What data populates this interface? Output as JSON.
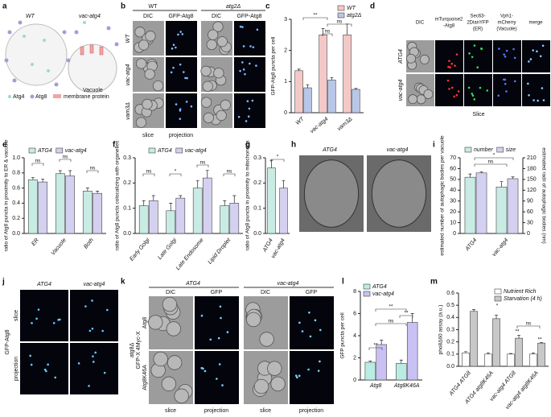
{
  "panel_letters": [
    "a",
    "b",
    "c",
    "d",
    "e",
    "f",
    "g",
    "h",
    "i",
    "j",
    "k",
    "l",
    "m"
  ],
  "panel_a": {
    "wt": "WT",
    "mutant": "vac-atg4",
    "vacuole": "Vacuole",
    "legend": [
      "Atg4",
      "Atg8",
      "membrane protein"
    ]
  },
  "panel_b": {
    "groups": [
      "WT",
      "atg2Δ"
    ],
    "columns": [
      "DIC",
      "GFP-Atg8",
      "DIC",
      "GFP-Atg8"
    ],
    "rows": [
      "WT",
      "vac-atg4",
      "vam3Δ"
    ],
    "footer": [
      "slice",
      "projection"
    ]
  },
  "panel_d": {
    "columns": [
      [
        "DIC"
      ],
      [
        "mTurquoise2",
        "-Atg8"
      ],
      [
        "Sec63-",
        "2DianYFP",
        "(ER)"
      ],
      [
        "Vph1-",
        "mCherry",
        "(Vacuole)"
      ],
      [
        "merge"
      ]
    ],
    "rows": [
      "ATG4",
      "vac-atg4"
    ],
    "footer": "Slice"
  },
  "panel_h": {
    "labels": [
      "ATG4",
      "vac-atg4"
    ]
  },
  "panel_j": {
    "columns": [
      "ATG4",
      "vac-atg4"
    ],
    "rows": [
      "slice",
      "projection"
    ],
    "side": "GFP-Atg8"
  },
  "panel_k": {
    "groups": [
      "ATG4",
      "vac-atg4"
    ],
    "columns": [
      "DIC",
      "GFP",
      "DIC",
      "GFP"
    ],
    "side": [
      "atg8Δ",
      "GFP-X 4Myc-X"
    ],
    "rows": [
      "Atg8",
      "Atg8K46A"
    ],
    "footer": [
      "slice",
      "projection",
      "slice",
      "projection"
    ]
  },
  "chart_data": [
    {
      "type": "bar",
      "ylabel": "GFP-Atg8 puncta per cell",
      "categories": [
        "WT",
        "vac-atg4",
        "vam3Δ"
      ],
      "series": [
        {
          "name": "WT",
          "color": "#f3c9c7",
          "values": [
            1.35,
            2.5,
            2.5
          ],
          "errors": [
            0.05,
            0.2,
            0.35
          ]
        },
        {
          "name": "atg2Δ",
          "color": "#b8c6e8",
          "values": [
            0.8,
            1.05,
            0.75
          ],
          "errors": [
            0.1,
            0.08,
            0.03
          ]
        }
      ],
      "ylim": [
        0,
        3
      ],
      "yticks": [
        0,
        1,
        2,
        3
      ],
      "annotations": [
        "**",
        "ns",
        "ns"
      ]
    },
    {
      "type": "bar",
      "ylabel": "ratio of Atg8 puncta in proximity to ER & vacuole",
      "categories": [
        "ER",
        "Vacuole",
        "Both"
      ],
      "series": [
        {
          "name": "ATG4",
          "color": "#c8ebe3",
          "values": [
            0.71,
            0.79,
            0.56
          ],
          "errors": [
            0.03,
            0.04,
            0.04
          ]
        },
        {
          "name": "vac-atg4",
          "color": "#d4d0f0",
          "values": [
            0.68,
            0.76,
            0.53
          ],
          "errors": [
            0.04,
            0.07,
            0.03
          ]
        }
      ],
      "ylim": [
        0,
        1.0
      ],
      "yticks": [
        {
          "value": 0,
          "label": "0.0"
        },
        0.2,
        0.4,
        0.6,
        0.8,
        {
          "value": 1,
          "label": "1.0"
        }
      ],
      "annotations": [
        "ns",
        "ns",
        "ns"
      ]
    },
    {
      "type": "bar",
      "ylabel": "ratio of Atg8 puncta colocalizing with organelles",
      "categories": [
        "Early Golgi",
        "Late Golgi",
        "Late Endosome",
        "Lipid Droplet"
      ],
      "series": [
        {
          "name": "ATG4",
          "color": "#c8ebe3",
          "values": [
            0.11,
            0.09,
            0.18,
            0.11
          ],
          "errors": [
            0.02,
            0.03,
            0.03,
            0.02
          ]
        },
        {
          "name": "vac-atg4",
          "color": "#d4d0f0",
          "values": [
            0.13,
            0.14,
            0.22,
            0.12
          ],
          "errors": [
            0.02,
            0.01,
            0.03,
            0.03
          ]
        }
      ],
      "ylim": [
        0,
        0.3
      ],
      "yticks": [
        {
          "value": 0,
          "label": "0.0"
        },
        0.1,
        0.2,
        0.3
      ],
      "annotations": [
        "ns",
        "*",
        "ns",
        "ns"
      ]
    },
    {
      "type": "bar",
      "ylabel": "ratio of Atg8 puncta in proximity to mitochondria",
      "categories": [
        "ATG4",
        "vac-atg4"
      ],
      "values": [
        0.26,
        0.18
      ],
      "errors": [
        0.03,
        0.03
      ],
      "colors": [
        "#c8ebe3",
        "#d4d0f0"
      ],
      "ylim": [
        0,
        0.3
      ],
      "yticks": [
        {
          "value": 0,
          "label": "0.0"
        },
        0.1,
        0.2,
        0.3
      ],
      "annotations": [
        "*"
      ]
    },
    {
      "type": "bar",
      "ylabel": "estimated number of autophagic bodies per vacuole",
      "y2label": "estimated radii of autophagic bodies (nm)",
      "categories": [
        "ATG4",
        "vac-atg4"
      ],
      "series": [
        {
          "name": "number",
          "color": "#c8ebe3",
          "values": [
            52,
            43
          ],
          "errors": [
            3,
            5
          ]
        },
        {
          "name": "size",
          "color": "#d4d0f0",
          "values": [
            168,
            152
          ],
          "errors": [
            3,
            5
          ],
          "axis": "y2"
        }
      ],
      "ylim": [
        0,
        70
      ],
      "yticks": [
        0,
        10,
        20,
        30,
        40,
        50,
        60,
        70
      ],
      "y2lim": [
        0,
        210
      ],
      "y2ticks": [
        0,
        30,
        60,
        90,
        120,
        150,
        180,
        210
      ],
      "annotations": [
        "ns",
        "*"
      ]
    },
    {
      "type": "bar",
      "ylabel": "GFP puncta per cell",
      "categories": [
        "Atg8",
        "Atg8K46A"
      ],
      "series": [
        {
          "name": "ATG4",
          "color": "#b9ede4",
          "values": [
            1.6,
            1.5
          ],
          "errors": [
            0.1,
            0.3
          ]
        },
        {
          "name": "vac-atg4",
          "color": "#c9c0f3",
          "values": [
            3.2,
            5.2
          ],
          "errors": [
            0.4,
            0.8
          ]
        }
      ],
      "ylim": [
        0,
        8
      ],
      "yticks": [
        0,
        2,
        4,
        6,
        8
      ],
      "annotations": [
        "**",
        "**",
        "ns",
        "**"
      ]
    },
    {
      "type": "bar",
      "ylabel": "pho8Δ60 assay (a.u.)",
      "categories": [
        "ATG4 ATG8",
        "ATG4 atg8K46A",
        "vac-atg4 ATG8",
        "vac-atg4 atg8K46A"
      ],
      "series": [
        {
          "name": "Nutrient Rich",
          "color": "#ffffff",
          "values": [
            0.11,
            0.1,
            0.1,
            0.1
          ],
          "errors": [
            0.01,
            0.01,
            0.005,
            0.01
          ]
        },
        {
          "name": "Starvation (4 h)",
          "color": "#c8c8c8",
          "values": [
            0.45,
            0.39,
            0.23,
            0.19
          ],
          "errors": [
            0.015,
            0.03,
            0.025,
            0.005
          ]
        }
      ],
      "ylim": [
        0,
        0.6
      ],
      "yticks": [
        {
          "value": 0,
          "label": "0.0"
        },
        0.1,
        0.2,
        0.3,
        0.4,
        0.5,
        0.6
      ],
      "annotations": [
        "*",
        "**",
        "**",
        "ns"
      ]
    }
  ]
}
